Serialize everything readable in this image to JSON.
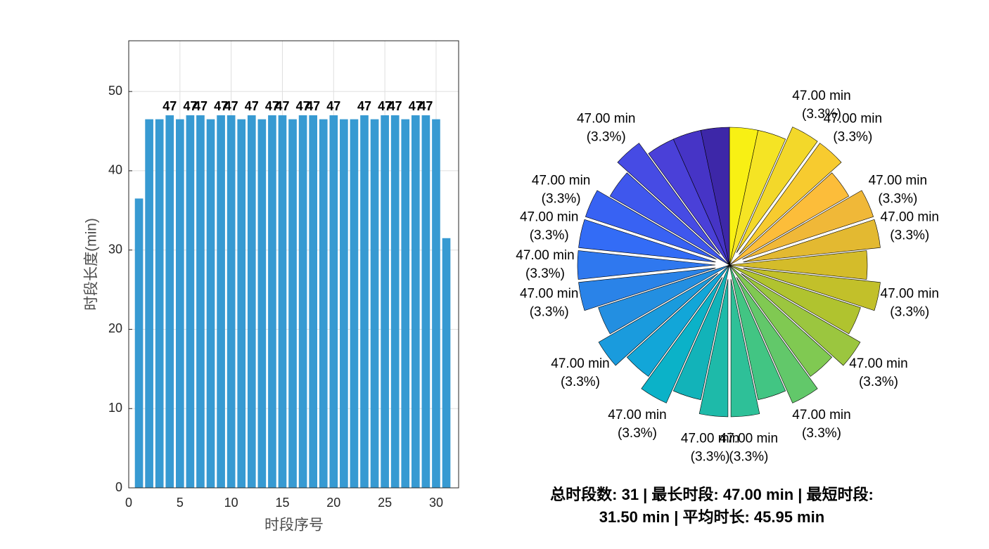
{
  "chart_data": [
    {
      "type": "bar",
      "xlabel": "时段序号",
      "ylabel": "时段长度(min)",
      "x": [
        1,
        2,
        3,
        4,
        5,
        6,
        7,
        8,
        9,
        10,
        11,
        12,
        13,
        14,
        15,
        16,
        17,
        18,
        19,
        20,
        21,
        22,
        23,
        24,
        25,
        26,
        27,
        28,
        29,
        30,
        31
      ],
      "values": [
        36.5,
        46.5,
        46.5,
        47,
        46.5,
        47,
        47,
        46.5,
        47,
        47,
        46.5,
        47,
        46.5,
        47,
        47,
        46.5,
        47,
        47,
        46.5,
        47,
        46.5,
        46.5,
        47,
        46.5,
        47,
        47,
        46.5,
        47,
        47,
        46.5,
        31.5
      ],
      "value_labels": [
        null,
        null,
        null,
        "47",
        null,
        "47",
        "47",
        null,
        "47",
        "47",
        null,
        "47",
        null,
        "47",
        "47",
        null,
        "47",
        "47",
        null,
        "47",
        null,
        null,
        "47",
        null,
        "47",
        "47",
        null,
        "47",
        "47",
        null,
        null
      ],
      "color": "#379ad2",
      "xlim": [
        0,
        32.2
      ],
      "xticks": [
        0,
        5,
        10,
        15,
        20,
        25,
        30
      ],
      "ylim": [
        0,
        56.4
      ],
      "yticks": [
        0,
        10,
        20,
        30,
        40,
        50
      ],
      "grid": true
    },
    {
      "type": "pie",
      "values": [
        47,
        47,
        47,
        47,
        47,
        47,
        47,
        47,
        47,
        47,
        47,
        47,
        47,
        47,
        47,
        47,
        47,
        47,
        47,
        47,
        47,
        47,
        47,
        47,
        47,
        47,
        47,
        47,
        47,
        47
      ],
      "value_labels": [
        null,
        null,
        "47.00 min",
        "47.00 min",
        null,
        "47.00 min",
        "47.00 min",
        null,
        "47.00 min",
        null,
        "47.00 min",
        null,
        "47.00 min",
        null,
        "47.00 min",
        "47.00 min",
        null,
        "47.00 min",
        null,
        "47.00 min",
        null,
        "47.00 min",
        "47.00 min",
        "47.00 min",
        "47.00 min",
        null,
        "47.00 min",
        null,
        null,
        null
      ],
      "percent_labels": [
        null,
        null,
        "(3.3%)",
        "(3.3%)",
        null,
        "(3.3%)",
        "(3.3%)",
        null,
        "(3.3%)",
        null,
        "(3.3%)",
        null,
        "(3.3%)",
        null,
        "(3.3%)",
        "(3.3%)",
        null,
        "(3.3%)",
        null,
        "(3.3%)",
        null,
        "(3.3%)",
        "(3.3%)",
        "(3.3%)",
        "(3.3%)",
        null,
        "(3.3%)",
        null,
        null,
        null
      ],
      "explode": [
        false,
        false,
        true,
        true,
        false,
        true,
        true,
        false,
        true,
        false,
        true,
        false,
        true,
        false,
        true,
        true,
        false,
        true,
        false,
        true,
        false,
        true,
        true,
        true,
        true,
        false,
        true,
        false,
        false,
        false
      ],
      "colors": [
        "#f8f014",
        "#f5e424",
        "#f3d82a",
        "#f7cb2f",
        "#fcbd3a",
        "#f0b838",
        "#e3b931",
        "#d4bc2a",
        "#c2c02a",
        "#b0c32f",
        "#9bc63f",
        "#80c952",
        "#62c86a",
        "#42c583",
        "#2ec098",
        "#1ebaa9",
        "#12b3b9",
        "#0bb2c8",
        "#12a6d8",
        "#1a9bdd",
        "#238fe1",
        "#2a83e8",
        "#2f78ef",
        "#336cf6",
        "#3862f3",
        "#3f57ed",
        "#464be4",
        "#4a40d8",
        "#4634c6",
        "#3d27a8"
      ]
    }
  ],
  "summary": {
    "lines": [
      "总时段数: 31 | 最长时段: 47.00 min | 最短时段:",
      "31.50 min | 平均时长: 45.95 min"
    ]
  }
}
